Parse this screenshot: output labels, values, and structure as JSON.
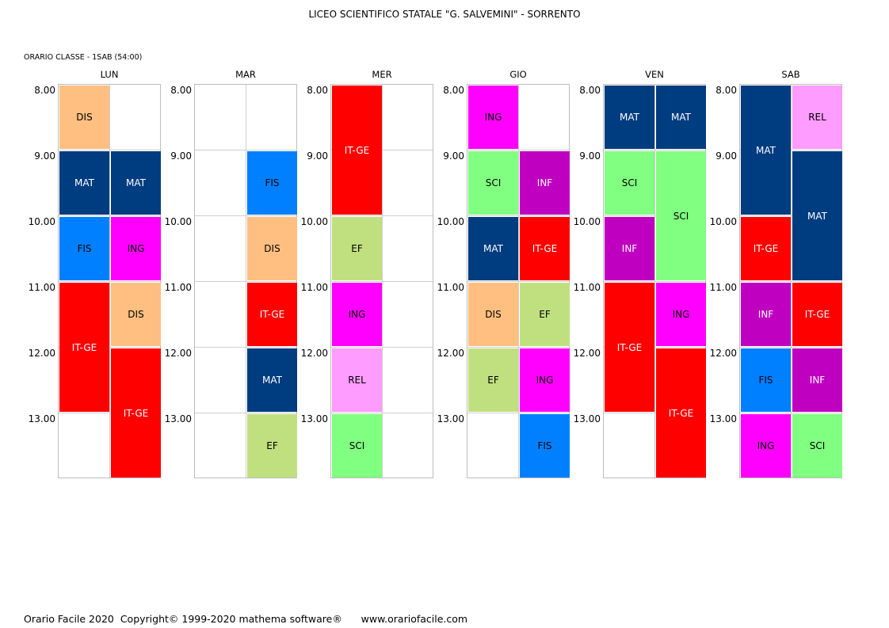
{
  "header": {
    "school": "LICEO SCIENTIFICO STATALE \"G. SALVEMINI\" - SORRENTO",
    "class_label": "ORARIO CLASSE  -  1SAB (54:00)"
  },
  "hours": [
    "8.00",
    "9.00",
    "10.00",
    "11.00",
    "12.00",
    "13.00"
  ],
  "subject_colors": {
    "DIS": {
      "bg": "#ffbf80",
      "fg": "#000000"
    },
    "MAT": {
      "bg": "#003c80",
      "fg": "#ffffff"
    },
    "FIS": {
      "bg": "#0080ff",
      "fg": "#000000"
    },
    "ING": {
      "bg": "#ff00ff",
      "fg": "#000000"
    },
    "IT-GE": {
      "bg": "#ff0000",
      "fg": "#ffffff"
    },
    "EF": {
      "bg": "#c0e080",
      "fg": "#000000"
    },
    "REL": {
      "bg": "#ff9cff",
      "fg": "#000000"
    },
    "SCI": {
      "bg": "#80ff80",
      "fg": "#000000"
    },
    "INF": {
      "bg": "#c000c0",
      "fg": "#ffffff"
    }
  },
  "days": [
    {
      "name": "LUN",
      "lessons": [
        {
          "subject": "DIS",
          "col": 0,
          "start": 0,
          "length": 1
        },
        {
          "subject": "MAT",
          "col": 0,
          "start": 1,
          "length": 1
        },
        {
          "subject": "MAT",
          "col": 1,
          "start": 1,
          "length": 1
        },
        {
          "subject": "FIS",
          "col": 0,
          "start": 2,
          "length": 1
        },
        {
          "subject": "ING",
          "col": 1,
          "start": 2,
          "length": 1
        },
        {
          "subject": "IT-GE",
          "col": 0,
          "start": 3,
          "length": 2
        },
        {
          "subject": "DIS",
          "col": 1,
          "start": 3,
          "length": 1
        },
        {
          "subject": "IT-GE",
          "col": 1,
          "start": 4,
          "length": 2
        }
      ]
    },
    {
      "name": "MAR",
      "lessons": [
        {
          "subject": "FIS",
          "col": 1,
          "start": 1,
          "length": 1
        },
        {
          "subject": "DIS",
          "col": 1,
          "start": 2,
          "length": 1
        },
        {
          "subject": "IT-GE",
          "col": 1,
          "start": 3,
          "length": 1
        },
        {
          "subject": "MAT",
          "col": 1,
          "start": 4,
          "length": 1
        },
        {
          "subject": "EF",
          "col": 1,
          "start": 5,
          "length": 1
        }
      ]
    },
    {
      "name": "MER",
      "lessons": [
        {
          "subject": "IT-GE",
          "col": 0,
          "start": 0,
          "length": 2
        },
        {
          "subject": "EF",
          "col": 0,
          "start": 2,
          "length": 1
        },
        {
          "subject": "ING",
          "col": 0,
          "start": 3,
          "length": 1
        },
        {
          "subject": "REL",
          "col": 0,
          "start": 4,
          "length": 1
        },
        {
          "subject": "SCI",
          "col": 0,
          "start": 5,
          "length": 1
        }
      ]
    },
    {
      "name": "GIO",
      "lessons": [
        {
          "subject": "ING",
          "col": 0,
          "start": 0,
          "length": 1
        },
        {
          "subject": "SCI",
          "col": 0,
          "start": 1,
          "length": 1
        },
        {
          "subject": "INF",
          "col": 1,
          "start": 1,
          "length": 1
        },
        {
          "subject": "MAT",
          "col": 0,
          "start": 2,
          "length": 1
        },
        {
          "subject": "IT-GE",
          "col": 1,
          "start": 2,
          "length": 1
        },
        {
          "subject": "DIS",
          "col": 0,
          "start": 3,
          "length": 1
        },
        {
          "subject": "EF",
          "col": 1,
          "start": 3,
          "length": 1
        },
        {
          "subject": "EF",
          "col": 0,
          "start": 4,
          "length": 1
        },
        {
          "subject": "ING",
          "col": 1,
          "start": 4,
          "length": 1
        },
        {
          "subject": "FIS",
          "col": 1,
          "start": 5,
          "length": 1
        }
      ]
    },
    {
      "name": "VEN",
      "lessons": [
        {
          "subject": "MAT",
          "col": 0,
          "start": 0,
          "length": 1
        },
        {
          "subject": "MAT",
          "col": 1,
          "start": 0,
          "length": 1
        },
        {
          "subject": "SCI",
          "col": 0,
          "start": 1,
          "length": 1
        },
        {
          "subject": "SCI",
          "col": 1,
          "start": 1,
          "length": 2
        },
        {
          "subject": "INF",
          "col": 0,
          "start": 2,
          "length": 1
        },
        {
          "subject": "IT-GE",
          "col": 0,
          "start": 3,
          "length": 2
        },
        {
          "subject": "ING",
          "col": 1,
          "start": 3,
          "length": 1
        },
        {
          "subject": "IT-GE",
          "col": 1,
          "start": 4,
          "length": 2
        }
      ]
    },
    {
      "name": "SAB",
      "lessons": [
        {
          "subject": "MAT",
          "col": 0,
          "start": 0,
          "length": 2
        },
        {
          "subject": "REL",
          "col": 1,
          "start": 0,
          "length": 1
        },
        {
          "subject": "MAT",
          "col": 1,
          "start": 1,
          "length": 2
        },
        {
          "subject": "IT-GE",
          "col": 0,
          "start": 2,
          "length": 1
        },
        {
          "subject": "INF",
          "col": 0,
          "start": 3,
          "length": 1
        },
        {
          "subject": "IT-GE",
          "col": 1,
          "start": 3,
          "length": 1
        },
        {
          "subject": "FIS",
          "col": 0,
          "start": 4,
          "length": 1
        },
        {
          "subject": "INF",
          "col": 1,
          "start": 4,
          "length": 1
        },
        {
          "subject": "ING",
          "col": 0,
          "start": 5,
          "length": 1
        },
        {
          "subject": "SCI",
          "col": 1,
          "start": 5,
          "length": 1
        }
      ]
    }
  ],
  "footer": {
    "text": "Orario Facile 2020  Copyright© 1999-2020 mathema software®      www.orariofacile.com"
  }
}
